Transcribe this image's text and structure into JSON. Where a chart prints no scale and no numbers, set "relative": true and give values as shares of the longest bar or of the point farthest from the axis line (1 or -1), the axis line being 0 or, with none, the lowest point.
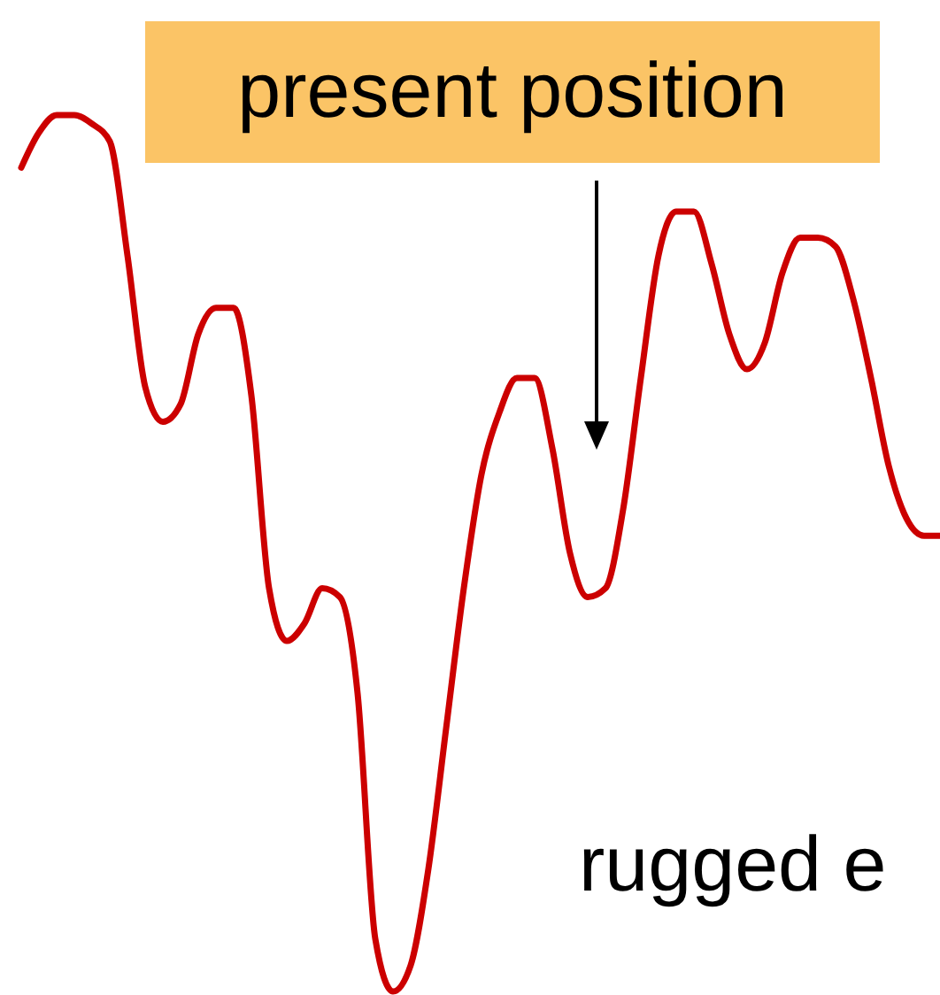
{
  "chart_data": {
    "type": "line",
    "relative": true,
    "color": "#cc0000",
    "categories": [
      null,
      null,
      null,
      null,
      null,
      null,
      null,
      null,
      null,
      null,
      null,
      null,
      null,
      null,
      null,
      null,
      null,
      null,
      null,
      null,
      null,
      null,
      null,
      null,
      null,
      null,
      null,
      null,
      null,
      null,
      null,
      null,
      null,
      null,
      null,
      null,
      null,
      null,
      null,
      null,
      null,
      null,
      null,
      null,
      null,
      null,
      null,
      null,
      null,
      null,
      null,
      null,
      null
    ],
    "values": [
      0.94,
      0.98,
      1.0,
      1.0,
      0.99,
      0.97,
      0.84,
      0.69,
      0.65,
      0.67,
      0.75,
      0.78,
      0.78,
      0.68,
      0.46,
      0.4,
      0.42,
      0.46,
      0.45,
      0.34,
      0.06,
      0,
      0.03,
      0.14,
      0.3,
      0.46,
      0.59,
      0.66,
      0.7,
      0.7,
      0.62,
      0.5,
      0.45,
      0.46,
      0.55,
      0.7,
      0.84,
      0.89,
      0.89,
      0.83,
      0.75,
      0.71,
      0.74,
      0.82,
      0.86,
      0.86,
      0.85,
      0.79,
      0.7,
      0.6,
      0.54,
      0.52,
      0.52
    ],
    "annotations": [
      "present position",
      "rugged e"
    ]
  }
}
